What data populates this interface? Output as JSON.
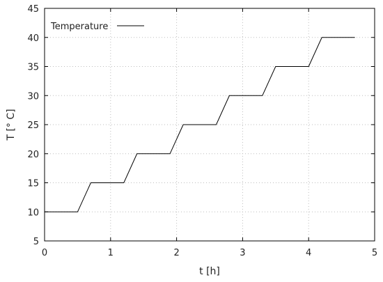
{
  "chart_data": {
    "type": "line",
    "xlabel": "t [h]",
    "ylabel": "T [° C]",
    "xlim": [
      0,
      5
    ],
    "ylim": [
      5,
      45
    ],
    "xticks": [
      0,
      1,
      2,
      3,
      4,
      5
    ],
    "yticks": [
      5,
      10,
      15,
      20,
      25,
      30,
      35,
      40,
      45
    ],
    "xtick_labels": [
      "0",
      "1",
      "2",
      "3",
      "4",
      "5"
    ],
    "ytick_labels": [
      "5",
      "10",
      "15",
      "20",
      "25",
      "30",
      "35",
      "40",
      "45"
    ],
    "grid": true,
    "legend_position": "top-left",
    "series": [
      {
        "name": "Temperature",
        "color": "#000000",
        "x": [
          0,
          0.5,
          0.7,
          1.2,
          1.4,
          1.9,
          2.1,
          2.6,
          2.8,
          3.3,
          3.5,
          4.0,
          4.2,
          4.7
        ],
        "y": [
          10,
          10,
          15,
          15,
          20,
          20,
          25,
          25,
          30,
          30,
          35,
          35,
          40,
          40
        ]
      }
    ]
  }
}
